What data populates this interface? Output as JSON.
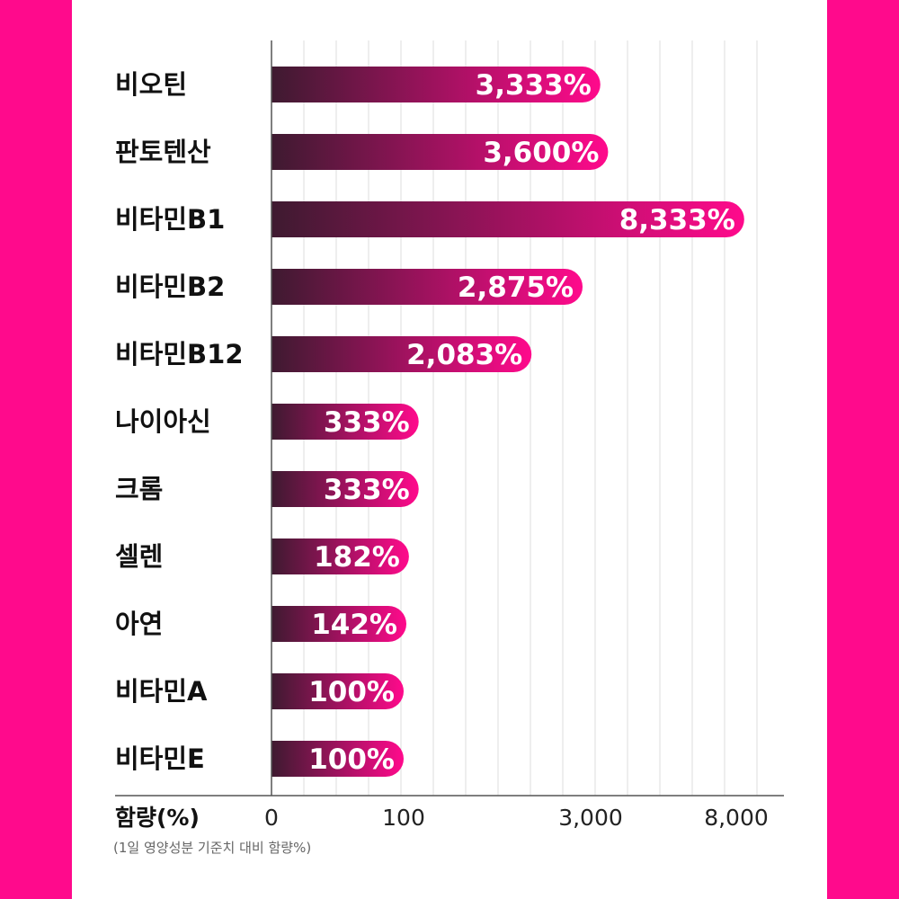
{
  "colors": {
    "background": "#ff0a8c",
    "panel": "#ffffff",
    "bar_start": "#3e1a30",
    "bar_end": "#ff0a8c",
    "grid": "#dddddd",
    "axis": "#555555"
  },
  "chart_data": {
    "type": "bar",
    "orientation": "horizontal",
    "categories": [
      "비오틴",
      "판토텐산",
      "비타민B1",
      "비타민B2",
      "비타민B12",
      "나이아신",
      "크롬",
      "셀렌",
      "아연",
      "비타민A",
      "비타민E"
    ],
    "values": [
      3333,
      3600,
      8333,
      2875,
      2083,
      333,
      333,
      182,
      142,
      100,
      100
    ],
    "value_labels": [
      "3,333%",
      "3,600%",
      "8,333%",
      "2,875%",
      "2,083%",
      "333%",
      "333%",
      "182%",
      "142%",
      "100%",
      "100%"
    ],
    "xlabel": "함량(%)",
    "xlabel_note": "(1일 영양성분 기준치 대비 함량%)",
    "x_ticks": [
      {
        "value": 0,
        "label": "0"
      },
      {
        "value": 100,
        "label": "100"
      },
      {
        "value": 3000,
        "label": "3,000"
      },
      {
        "value": 8000,
        "label": "8,000"
      }
    ],
    "scale": "non-linear (compressed)",
    "grid": true,
    "legend": "none"
  }
}
